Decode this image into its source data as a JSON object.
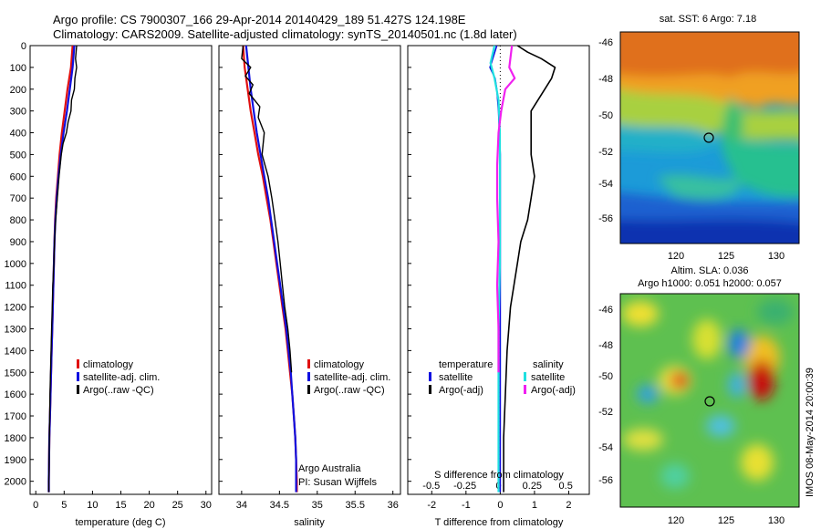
{
  "header": {
    "line1": "Argo profile: CS 7900307_166 29-Apr-2014 20140429_189 51.427S 124.198E",
    "line2": "Climatology: CARS2009. Satellite-adjusted climatology: synTS_20140501.nc (1.8d later)"
  },
  "credit": {
    "line1": "Argo Australia",
    "line2": "PI: Susan Wijffels"
  },
  "timestamp": "IMOS 08-May-2014 20:00:39",
  "colors": {
    "climatology": "#e01010",
    "satellite": "#1010e0",
    "argo": "#000000",
    "sal_satellite": "#20e0e0",
    "sal_argo": "#f020f0"
  },
  "legend_tempsal": {
    "climatology": "climatology",
    "satellite": "satellite-adj. clim.",
    "argo": "Argo(..raw -QC)"
  },
  "legend_diff": {
    "temp_header": "temperature",
    "sal_header": "salinity",
    "satellite": "satellite",
    "argo": "Argo(-adj)"
  },
  "maps": {
    "sst_title": "sat. SST: 6 Argo: 7.18",
    "sla_title1": "Altim. SLA: 0.036",
    "sla_title2": "Argo h1000: 0.051 h2000: 0.057",
    "lat_ticks": [
      "-46",
      "-48",
      "-50",
      "-52",
      "-54",
      "-56"
    ],
    "lon_ticks": [
      "120",
      "125",
      "130"
    ],
    "argo_position": {
      "lon": 124.198,
      "lat": -51.427
    }
  },
  "chart_data": [
    {
      "type": "line",
      "panel": "temperature",
      "xlabel": "temperature (deg C)",
      "ylabel": "",
      "xlim": [
        -1,
        31
      ],
      "ylim": [
        2060,
        0
      ],
      "xticks": [
        "0",
        "5",
        "10",
        "15",
        "20",
        "25",
        "30"
      ],
      "yticks": [
        "0",
        "100",
        "200",
        "300",
        "400",
        "500",
        "600",
        "700",
        "800",
        "900",
        "1000",
        "1100",
        "1200",
        "1300",
        "1400",
        "1500",
        "1600",
        "1700",
        "1800",
        "1900",
        "2000"
      ],
      "series": [
        {
          "name": "climatology",
          "x": [
            6.5,
            6.2,
            5.6,
            5.1,
            4.6,
            4.2,
            3.9,
            3.6,
            3.4,
            3.3,
            3.2,
            3.1,
            3.0,
            2.9,
            2.8,
            2.7,
            2.6,
            2.5,
            2.4,
            2.35,
            2.3,
            2.3
          ],
          "y": [
            0,
            100,
            200,
            300,
            400,
            500,
            600,
            700,
            800,
            900,
            1000,
            1100,
            1200,
            1300,
            1400,
            1500,
            1600,
            1700,
            1800,
            1900,
            2000,
            2050
          ]
        },
        {
          "name": "satellite-adj. clim.",
          "x": [
            6.8,
            6.5,
            6.0,
            5.5,
            4.9,
            4.4,
            4.0,
            3.7,
            3.45,
            3.3,
            3.2,
            3.1,
            3.0,
            2.9,
            2.8,
            2.7,
            2.6,
            2.5,
            2.4,
            2.35,
            2.3,
            2.3
          ],
          "y": [
            0,
            100,
            200,
            300,
            400,
            500,
            600,
            700,
            800,
            900,
            1000,
            1100,
            1200,
            1300,
            1400,
            1500,
            1600,
            1700,
            1800,
            1900,
            2000,
            2050
          ]
        },
        {
          "name": "Argo(..raw -QC)",
          "x": [
            7.2,
            7.0,
            7.2,
            6.9,
            6.8,
            6.3,
            6.2,
            5.7,
            5.4,
            4.8,
            4.5,
            4.1,
            3.8,
            3.5,
            3.3,
            3.2,
            3.0,
            2.9,
            2.8,
            2.7,
            2.6,
            2.5,
            2.45,
            2.4,
            2.35,
            2.3,
            2.3
          ],
          "y": [
            0,
            60,
            100,
            150,
            200,
            250,
            300,
            350,
            400,
            450,
            500,
            600,
            700,
            800,
            900,
            1000,
            1100,
            1200,
            1300,
            1400,
            1500,
            1600,
            1700,
            1800,
            1900,
            2000,
            2050
          ]
        }
      ]
    },
    {
      "type": "line",
      "panel": "salinity",
      "xlabel": "salinity",
      "ylabel": "",
      "xlim": [
        33.7,
        36.1
      ],
      "ylim": [
        2060,
        0
      ],
      "xticks": [
        "34",
        "34.5",
        "35",
        "35.5",
        "36"
      ],
      "series": [
        {
          "name": "climatology",
          "x": [
            34.02,
            34.04,
            34.08,
            34.12,
            34.17,
            34.22,
            34.28,
            34.33,
            34.38,
            34.42,
            34.46,
            34.5,
            34.54,
            34.58,
            34.61,
            34.64,
            34.67,
            34.69,
            34.71,
            34.72,
            34.73,
            34.73
          ],
          "y": [
            0,
            100,
            200,
            300,
            400,
            500,
            600,
            700,
            800,
            900,
            1000,
            1100,
            1200,
            1300,
            1400,
            1500,
            1600,
            1700,
            1800,
            1900,
            2000,
            2050
          ]
        },
        {
          "name": "satellite-adj. clim.",
          "x": [
            34.06,
            34.09,
            34.12,
            34.16,
            34.2,
            34.25,
            34.3,
            34.35,
            34.39,
            34.43,
            34.47,
            34.51,
            34.55,
            34.59,
            34.62,
            34.65,
            34.67,
            34.69,
            34.71,
            34.72,
            34.72,
            34.72
          ],
          "y": [
            0,
            100,
            200,
            300,
            400,
            500,
            600,
            700,
            800,
            900,
            1000,
            1100,
            1200,
            1300,
            1400,
            1500,
            1600,
            1700,
            1800,
            1900,
            2000,
            2050
          ]
        },
        {
          "name": "Argo(..raw -QC)",
          "x": [
            34.02,
            34.0,
            34.12,
            34.05,
            34.15,
            34.1,
            34.24,
            34.22,
            34.3,
            34.27,
            34.35,
            34.4,
            34.44,
            34.48,
            34.51,
            34.54,
            34.57,
            34.61,
            34.64,
            34.66
          ],
          "y": [
            0,
            60,
            100,
            140,
            180,
            220,
            280,
            330,
            400,
            500,
            600,
            700,
            800,
            900,
            1000,
            1100,
            1200,
            1300,
            1400,
            1500
          ]
        }
      ]
    },
    {
      "type": "line",
      "panel": "difference",
      "xlabel": "T difference from climatology",
      "xlabel_top": "S difference from climatology",
      "xlim": [
        -2.7,
        2.6
      ],
      "ylim": [
        2060,
        0
      ],
      "xticks": [
        "-2",
        "-1",
        "0",
        "1",
        "2"
      ],
      "xticks_top": [
        "-0.5",
        "-0.25",
        "0",
        "0.25",
        "0.5"
      ],
      "series": [
        {
          "name": "satellite (temperature)",
          "x": [
            -0.1,
            -0.2,
            -0.3,
            -0.15,
            -0.1,
            -0.05,
            0,
            0,
            0,
            0,
            0,
            0,
            0,
            0,
            0,
            0
          ],
          "y": [
            0,
            50,
            100,
            150,
            200,
            300,
            500,
            700,
            900,
            1100,
            1300,
            1500,
            1600,
            1800,
            2000,
            2050
          ]
        },
        {
          "name": "Argo(-adj) (temperature)",
          "x": [
            0.5,
            0.8,
            1.2,
            1.6,
            1.5,
            1.3,
            0.9,
            0.9,
            0.9,
            1.0,
            0.9,
            0.8,
            0.6,
            0.5,
            0.4,
            0.3,
            0.2,
            0.15,
            0.1,
            0.1
          ],
          "y": [
            0,
            30,
            60,
            100,
            150,
            200,
            300,
            400,
            500,
            600,
            700,
            800,
            900,
            1000,
            1100,
            1200,
            1400,
            1600,
            1800,
            2050
          ]
        },
        {
          "name": "satellite (salinity)",
          "x": [
            -0.03,
            -0.06,
            -0.03,
            0.0,
            0.01,
            0.01,
            0.01,
            0.01,
            0.0,
            0.0,
            0.0,
            0.0
          ],
          "y": [
            0,
            80,
            150,
            250,
            400,
            600,
            800,
            1000,
            1300,
            1600,
            1900,
            2050
          ]
        },
        {
          "name": "Argo(-adj) (salinity)",
          "x": [
            0.1,
            0.08,
            0.12,
            0.05,
            0.02,
            0.0,
            -0.01,
            -0.01,
            0.0,
            -0.01,
            0.0,
            0.0
          ],
          "y": [
            0,
            100,
            150,
            200,
            300,
            400,
            550,
            700,
            900,
            1100,
            1300,
            1500
          ]
        }
      ]
    }
  ]
}
